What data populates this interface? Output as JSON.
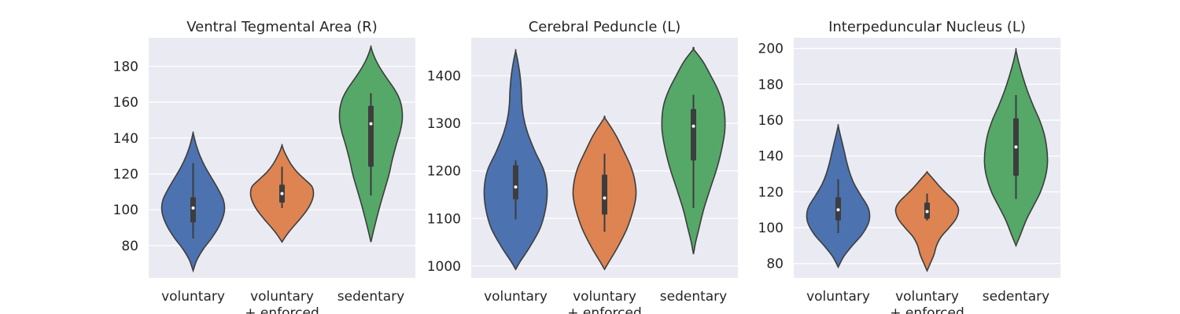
{
  "chart_data": [
    {
      "type": "violin",
      "title": "Ventral Tegmental Area (R)",
      "categories": [
        "voluntary",
        "voluntary\n+ enforced",
        "sedentary"
      ],
      "yticks": [
        80,
        100,
        120,
        140,
        160,
        180
      ],
      "ylim": [
        62,
        196
      ],
      "grid": true,
      "violins": [
        {
          "category": "voluntary",
          "color": "#4c72b0",
          "extent": [
            66,
            143
          ],
          "density": [
            [
              66,
              0.0
            ],
            [
              72,
              0.12
            ],
            [
              78,
              0.32
            ],
            [
              84,
              0.58
            ],
            [
              90,
              0.8
            ],
            [
              96,
              0.95
            ],
            [
              101,
              1.0
            ],
            [
              106,
              0.95
            ],
            [
              112,
              0.78
            ],
            [
              118,
              0.58
            ],
            [
              124,
              0.38
            ],
            [
              130,
              0.22
            ],
            [
              136,
              0.1
            ],
            [
              140,
              0.04
            ],
            [
              143,
              0.0
            ]
          ],
          "whisker": [
            84,
            126
          ],
          "q1": 93,
          "median": 101,
          "q3": 107
        },
        {
          "category": "voluntary\n+ enforced",
          "color": "#dd8452",
          "extent": [
            82,
            136
          ],
          "density": [
            [
              82,
              0.0
            ],
            [
              86,
              0.15
            ],
            [
              90,
              0.33
            ],
            [
              95,
              0.58
            ],
            [
              100,
              0.8
            ],
            [
              105,
              0.95
            ],
            [
              109,
              1.0
            ],
            [
              113,
              0.95
            ],
            [
              117,
              0.72
            ],
            [
              121,
              0.48
            ],
            [
              125,
              0.3
            ],
            [
              129,
              0.17
            ],
            [
              133,
              0.06
            ],
            [
              136,
              0.0
            ]
          ],
          "whisker": [
            101,
            124
          ],
          "q1": 104,
          "median": 109,
          "q3": 114
        },
        {
          "category": "sedentary",
          "color": "#55a868",
          "extent": [
            82,
            191
          ],
          "density": [
            [
              82,
              0.0
            ],
            [
              88,
              0.08
            ],
            [
              95,
              0.18
            ],
            [
              103,
              0.3
            ],
            [
              112,
              0.45
            ],
            [
              120,
              0.58
            ],
            [
              128,
              0.68
            ],
            [
              136,
              0.8
            ],
            [
              143,
              0.92
            ],
            [
              149,
              0.99
            ],
            [
              153,
              1.0
            ],
            [
              158,
              0.97
            ],
            [
              163,
              0.88
            ],
            [
              168,
              0.72
            ],
            [
              173,
              0.52
            ],
            [
              178,
              0.33
            ],
            [
              183,
              0.17
            ],
            [
              188,
              0.05
            ],
            [
              191,
              0.0
            ]
          ],
          "whisker": [
            108,
            165
          ],
          "q1": 124,
          "median": 148,
          "q3": 158
        }
      ]
    },
    {
      "type": "violin",
      "title": "Cerebral Peduncle (L)",
      "categories": [
        "voluntary",
        "voluntary\n+ enforced",
        "sedentary"
      ],
      "yticks": [
        1000,
        1100,
        1200,
        1300,
        1400
      ],
      "ylim": [
        975,
        1480
      ],
      "grid": true,
      "violins": [
        {
          "category": "voluntary",
          "color": "#4c72b0",
          "extent": [
            993,
            1452
          ],
          "density": [
            [
              993,
              0.0
            ],
            [
              1010,
              0.15
            ],
            [
              1040,
              0.45
            ],
            [
              1080,
              0.78
            ],
            [
              1120,
              0.95
            ],
            [
              1160,
              1.0
            ],
            [
              1200,
              0.9
            ],
            [
              1240,
              0.62
            ],
            [
              1280,
              0.38
            ],
            [
              1310,
              0.26
            ],
            [
              1340,
              0.2
            ],
            [
              1370,
              0.18
            ],
            [
              1400,
              0.14
            ],
            [
              1430,
              0.07
            ],
            [
              1452,
              0.0
            ]
          ],
          "whisker": [
            1098,
            1222
          ],
          "q1": 1140,
          "median": 1166,
          "q3": 1212
        },
        {
          "category": "voluntary\n+ enforced",
          "color": "#dd8452",
          "extent": [
            993,
            1312
          ],
          "density": [
            [
              993,
              0.0
            ],
            [
              1010,
              0.15
            ],
            [
              1040,
              0.42
            ],
            [
              1080,
              0.72
            ],
            [
              1120,
              0.92
            ],
            [
              1150,
              1.0
            ],
            [
              1180,
              0.96
            ],
            [
              1210,
              0.83
            ],
            [
              1240,
              0.62
            ],
            [
              1270,
              0.4
            ],
            [
              1290,
              0.22
            ],
            [
              1312,
              0.0
            ]
          ],
          "whisker": [
            1072,
            1236
          ],
          "q1": 1108,
          "median": 1143,
          "q3": 1192
        },
        {
          "category": "sedentary",
          "color": "#55a868",
          "extent": [
            1025,
            1456
          ],
          "density": [
            [
              1025,
              0.0
            ],
            [
              1050,
              0.07
            ],
            [
              1080,
              0.18
            ],
            [
              1120,
              0.33
            ],
            [
              1160,
              0.52
            ],
            [
              1200,
              0.72
            ],
            [
              1240,
              0.88
            ],
            [
              1280,
              0.99
            ],
            [
              1310,
              1.0
            ],
            [
              1340,
              0.94
            ],
            [
              1370,
              0.78
            ],
            [
              1400,
              0.55
            ],
            [
              1430,
              0.3
            ],
            [
              1456,
              0.0
            ]
          ],
          "whisker": [
            1122,
            1360
          ],
          "q1": 1222,
          "median": 1294,
          "q3": 1330
        }
      ]
    },
    {
      "type": "violin",
      "title": "Interpeduncular Nucleus (L)",
      "categories": [
        "voluntary",
        "voluntary\n+ enforced",
        "sedentary"
      ],
      "yticks": [
        80,
        100,
        120,
        140,
        160,
        180,
        200
      ],
      "ylim": [
        72,
        206
      ],
      "grid": true,
      "violins": [
        {
          "category": "voluntary",
          "color": "#4c72b0",
          "extent": [
            78,
            157
          ],
          "density": [
            [
              78,
              0.0
            ],
            [
              84,
              0.18
            ],
            [
              90,
              0.45
            ],
            [
              96,
              0.75
            ],
            [
              102,
              0.95
            ],
            [
              107,
              1.0
            ],
            [
              112,
              0.93
            ],
            [
              118,
              0.72
            ],
            [
              124,
              0.52
            ],
            [
              130,
              0.38
            ],
            [
              136,
              0.28
            ],
            [
              142,
              0.2
            ],
            [
              148,
              0.12
            ],
            [
              153,
              0.05
            ],
            [
              157,
              0.0
            ]
          ],
          "whisker": [
            97,
            127
          ],
          "q1": 104,
          "median": 110,
          "q3": 117
        },
        {
          "category": "voluntary\n+ enforced",
          "color": "#dd8452",
          "extent": [
            76,
            131
          ],
          "density": [
            [
              76,
              0.0
            ],
            [
              80,
              0.1
            ],
            [
              85,
              0.22
            ],
            [
              90,
              0.3
            ],
            [
              95,
              0.45
            ],
            [
              100,
              0.7
            ],
            [
              105,
              0.92
            ],
            [
              110,
              1.0
            ],
            [
              114,
              0.9
            ],
            [
              118,
              0.68
            ],
            [
              122,
              0.45
            ],
            [
              126,
              0.25
            ],
            [
              129,
              0.1
            ],
            [
              131,
              0.0
            ]
          ],
          "whisker": [
            104,
            119
          ],
          "q1": 105,
          "median": 109,
          "q3": 114
        },
        {
          "category": "sedentary",
          "color": "#55a868",
          "extent": [
            90,
            199
          ],
          "density": [
            [
              90,
              0.0
            ],
            [
              96,
              0.14
            ],
            [
              104,
              0.32
            ],
            [
              112,
              0.55
            ],
            [
              120,
              0.78
            ],
            [
              128,
              0.93
            ],
            [
              136,
              1.0
            ],
            [
              144,
              0.98
            ],
            [
              152,
              0.9
            ],
            [
              160,
              0.75
            ],
            [
              168,
              0.55
            ],
            [
              176,
              0.37
            ],
            [
              184,
              0.22
            ],
            [
              192,
              0.09
            ],
            [
              199,
              0.0
            ]
          ],
          "whisker": [
            116,
            174
          ],
          "q1": 129,
          "median": 145,
          "q3": 161
        }
      ]
    }
  ]
}
